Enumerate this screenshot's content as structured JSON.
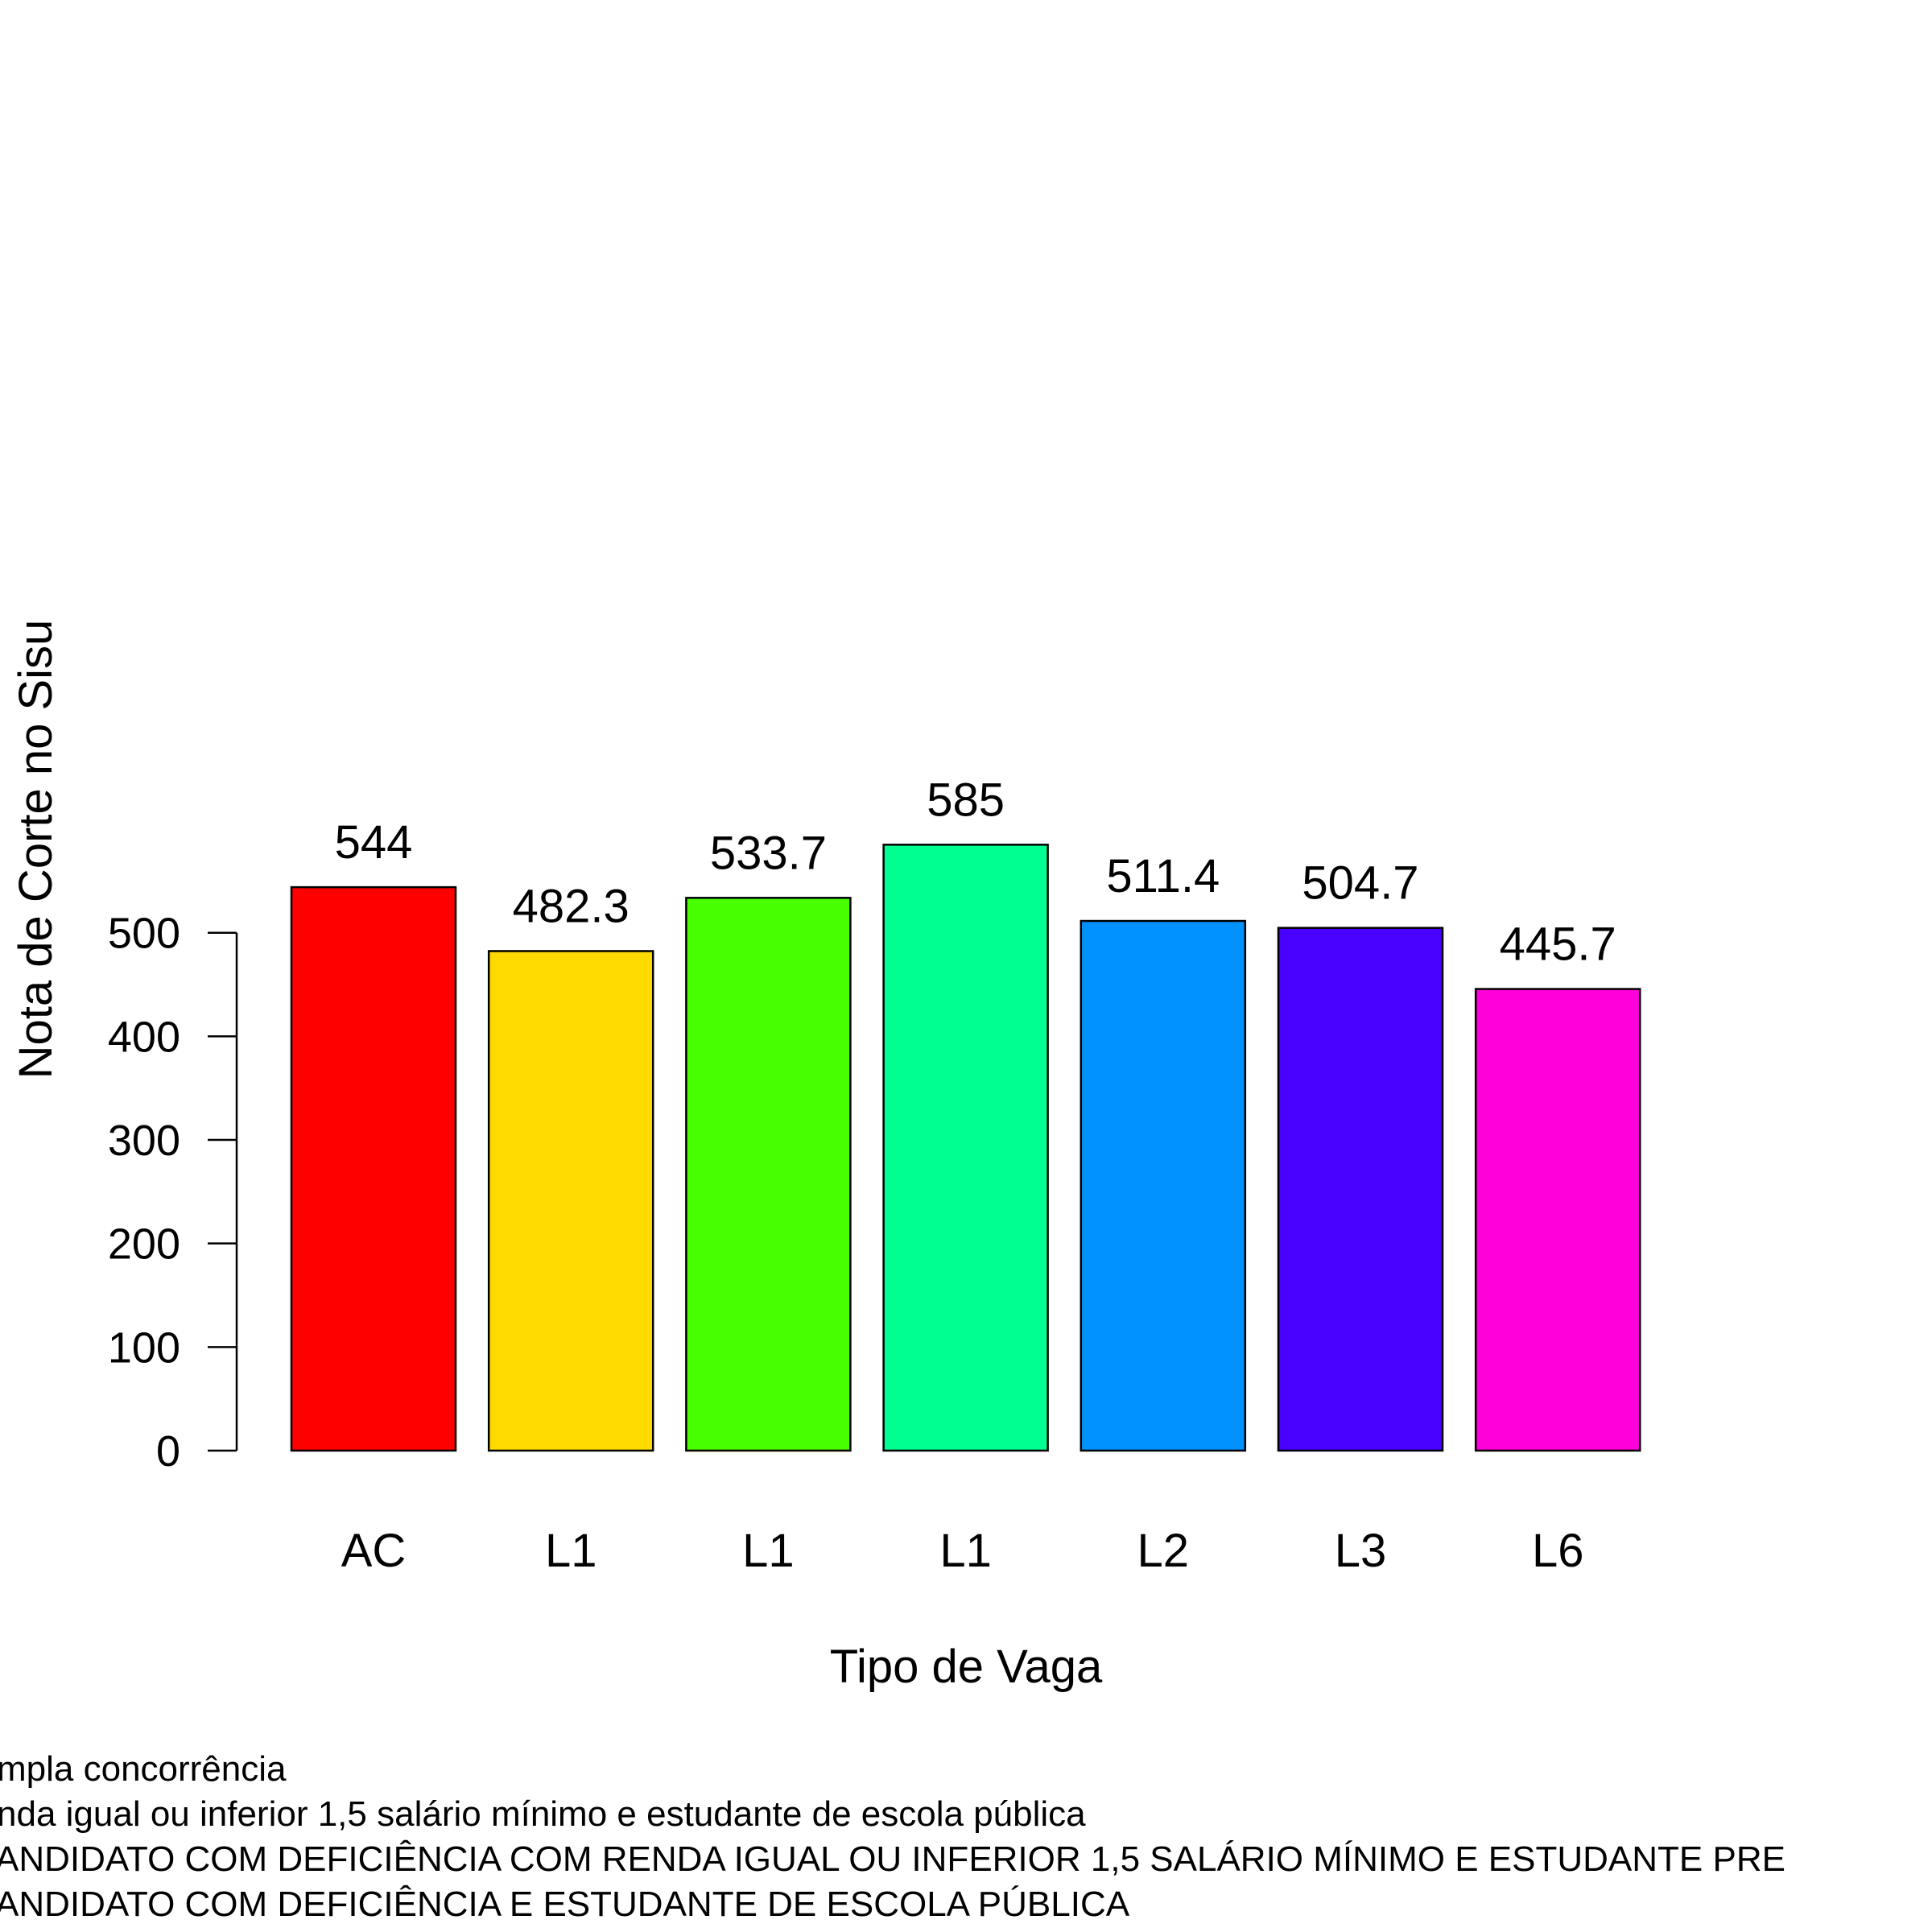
{
  "chart_data": {
    "type": "bar",
    "categories": [
      "AC",
      "L1",
      "L1",
      "L1",
      "L2",
      "L3",
      "L6"
    ],
    "values": [
      544,
      482.3,
      533.7,
      585,
      511.4,
      504.7,
      445.7
    ],
    "value_labels": [
      "544",
      "482.3",
      "533.7",
      "585",
      "511.4",
      "504.7",
      "445.7"
    ],
    "colors": [
      "#ff0000",
      "#ffda00",
      "#48ff00",
      "#00ff91",
      "#0091ff",
      "#4800ff",
      "#ff00da"
    ],
    "title": "",
    "xlabel": "Tipo de Vaga",
    "ylabel": "Nota de Corte no Sisu",
    "ylim": [
      0,
      600
    ],
    "yticks": [
      0,
      100,
      200,
      300,
      400,
      500
    ],
    "grid": false,
    "legend": "none"
  },
  "footnotes": [
    "mpla concorrência",
    "nda igual ou inferior 1,5 salário mínimo e estudante de escola pública",
    "ANDIDATO COM DEFICIÊNCIA COM RENDA IGUAL OU INFERIOR 1,5 SALÁRIO MÍNIMO E ESTUDANTE PRE",
    "ANDIDATO COM DEFICIÊNCIA E ESTUDANTE DE ESCOLA PÚBLICA"
  ]
}
